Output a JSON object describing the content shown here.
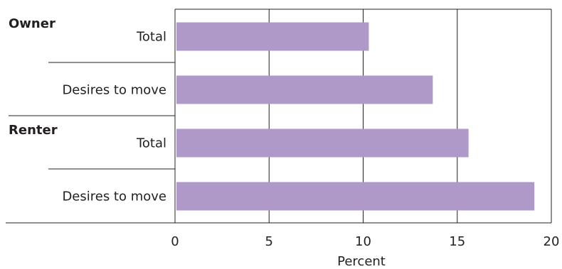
{
  "chart_data": {
    "type": "bar",
    "orientation": "horizontal",
    "title": "",
    "xlabel": "Percent",
    "ylabel": "",
    "xlim": [
      0,
      20
    ],
    "x_ticks": [
      "0",
      "5",
      "10",
      "15",
      "20"
    ],
    "grid": "vertical",
    "groups": [
      {
        "label": "Owner",
        "categories": [
          "Total",
          "Desires to move"
        ],
        "values": [
          10.3,
          13.7
        ]
      },
      {
        "label": "Renter",
        "categories": [
          "Total",
          "Desires to move"
        ],
        "values": [
          15.6,
          19.1
        ]
      }
    ],
    "colors": {
      "bar": "#ae99c8",
      "line": "#231f20"
    }
  }
}
